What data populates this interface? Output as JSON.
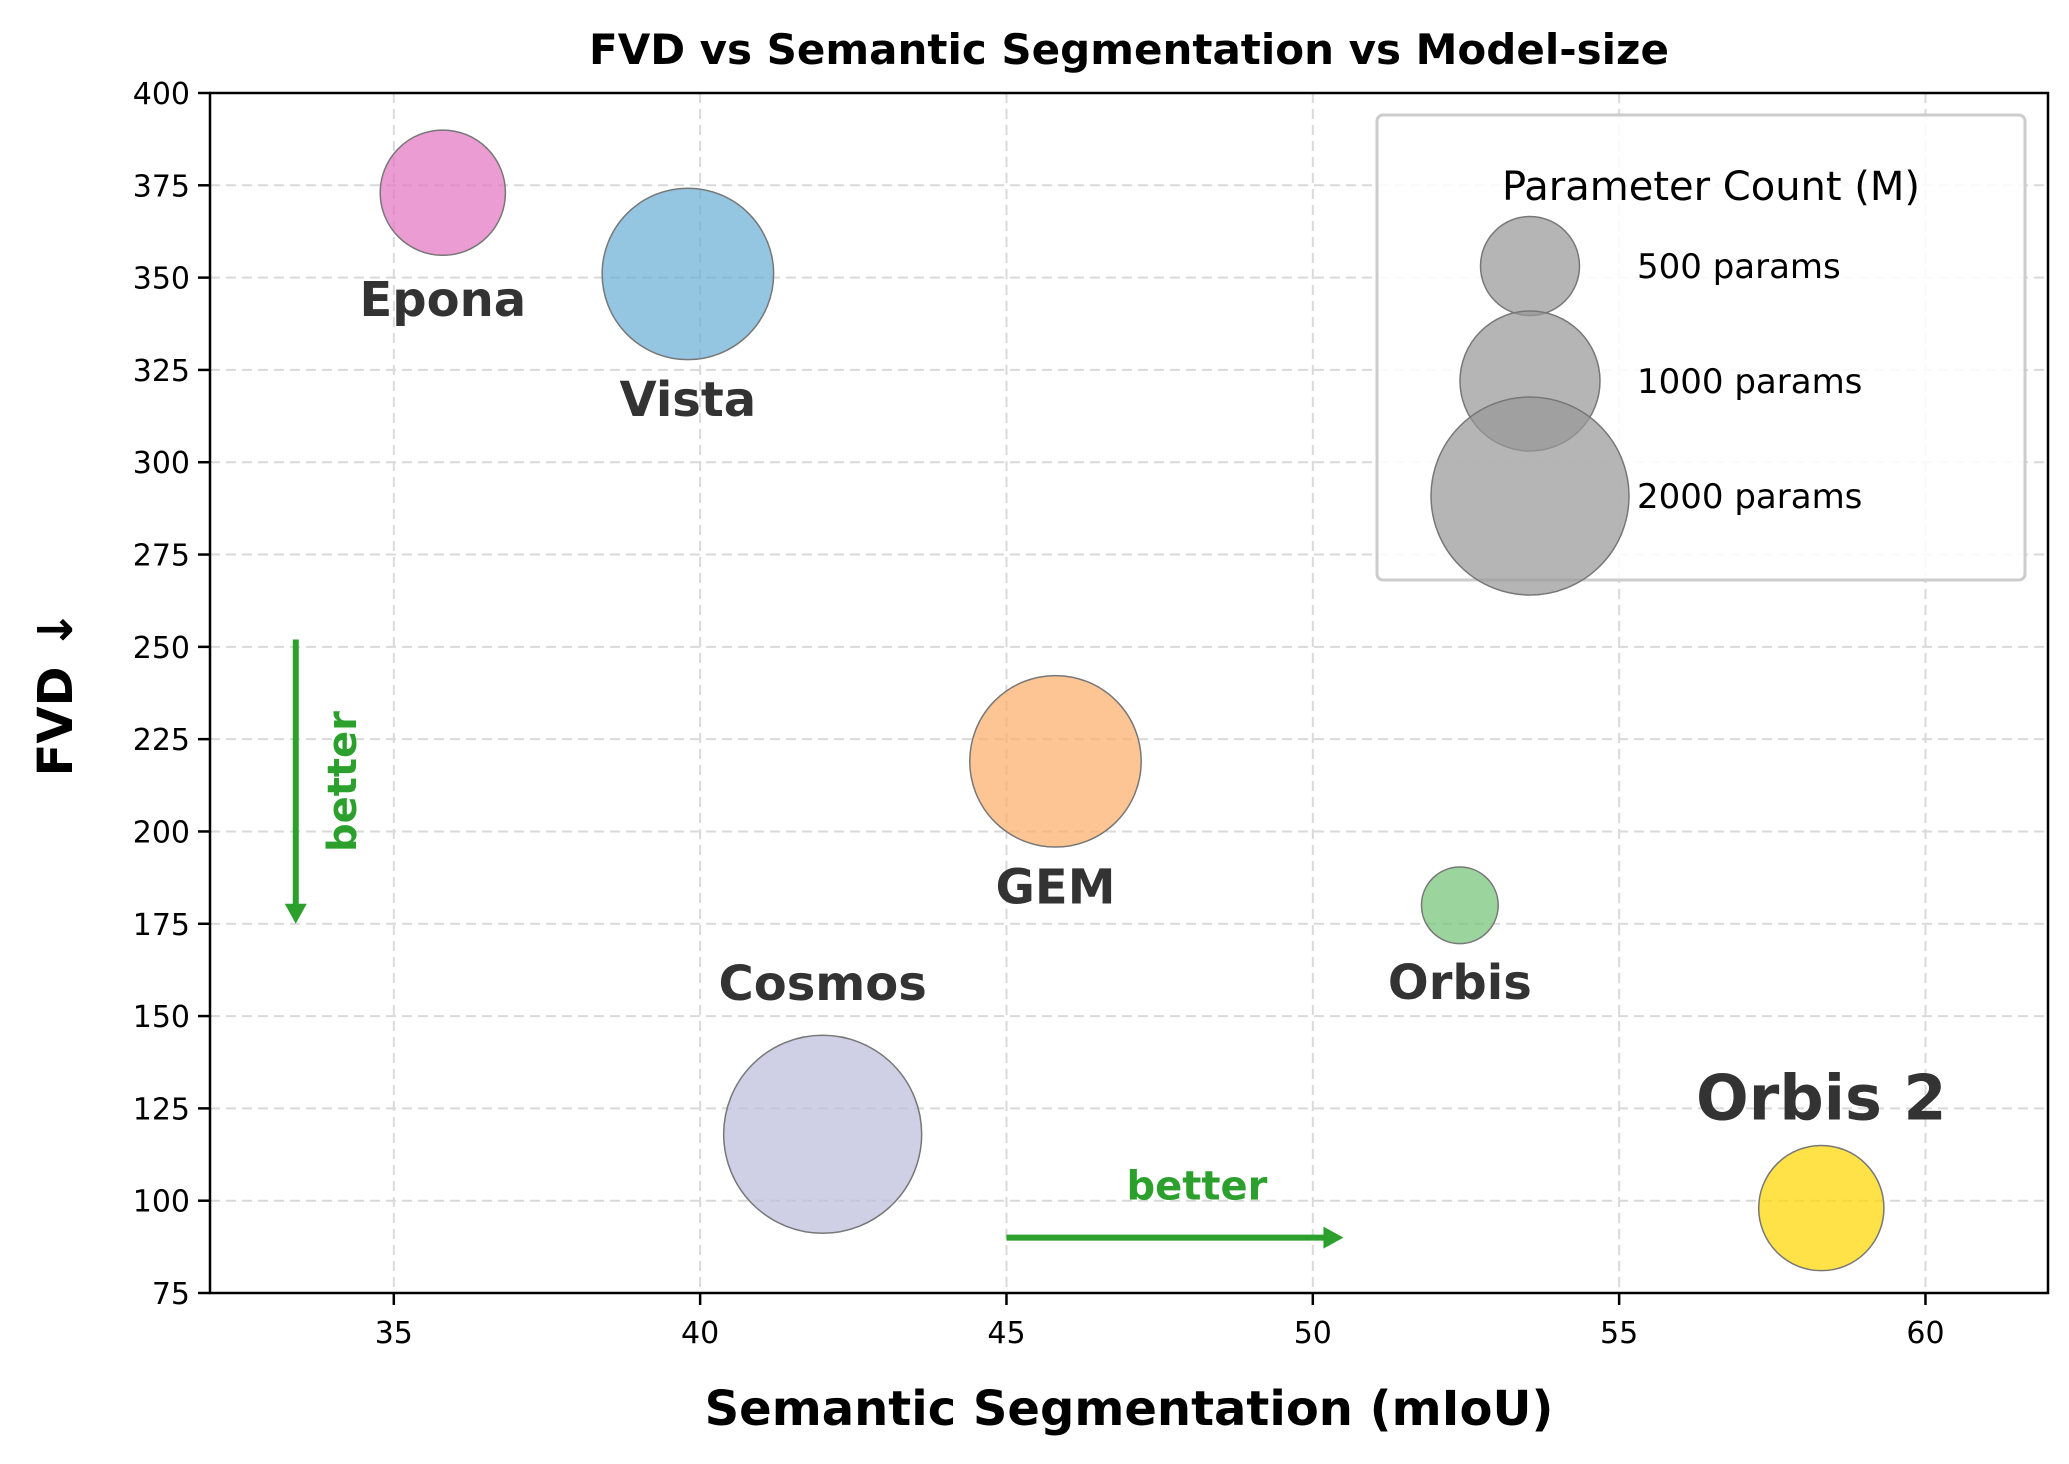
{
  "chart_data": {
    "type": "scatter",
    "title": "FVD vs Semantic Segmentation vs Model-size",
    "xlabel": "Semantic Segmentation (mIoU)",
    "ylabel": "FVD  ↓",
    "xlim": [
      32,
      62
    ],
    "ylim": [
      75,
      400
    ],
    "xticks": [
      35,
      40,
      45,
      50,
      55,
      60
    ],
    "yticks": [
      75,
      100,
      125,
      150,
      175,
      200,
      225,
      250,
      275,
      300,
      325,
      350,
      375,
      400
    ],
    "grid": true,
    "points": [
      {
        "name": "Epona",
        "x": 35.8,
        "y": 373,
        "params": 800,
        "color": "#e377c2",
        "label_dx": 0,
        "label_dy": -26,
        "label_size": 48
      },
      {
        "name": "Vista",
        "x": 39.8,
        "y": 351,
        "params": 1500,
        "color": "#6baed6",
        "label_dx": 0,
        "label_dy": -22,
        "label_size": 48
      },
      {
        "name": "GEM",
        "x": 45.8,
        "y": 219,
        "params": 1500,
        "color": "#fdae6b",
        "label_dx": 0,
        "label_dy": -22,
        "label_size": 48
      },
      {
        "name": "Orbis",
        "x": 52.4,
        "y": 180,
        "params": 300,
        "color": "#74c476",
        "label_dx": 0,
        "label_dy": -21,
        "label_size": 48
      },
      {
        "name": "Cosmos",
        "x": 42.0,
        "y": 118,
        "params": 2000,
        "color": "#bcbddc",
        "label_dx": 0,
        "label_dy": 35,
        "label_size": 48
      },
      {
        "name": "Orbis 2",
        "x": 58.3,
        "y": 98,
        "params": 800,
        "color": "#ffd700",
        "label_dx": 0,
        "label_dy": 26,
        "label_size": 62
      }
    ],
    "legend": {
      "title": "Parameter Count (M)",
      "placement": "top-right",
      "entries": [
        {
          "label": "500 params",
          "params": 500
        },
        {
          "label": "1000 params",
          "params": 1000
        },
        {
          "label": "2000 params",
          "params": 2000
        }
      ]
    },
    "annotations": {
      "vertical": {
        "text": "better",
        "color": "#2ca02c",
        "x": 33.4,
        "y_from": 252,
        "y_to": 175
      },
      "horizontal": {
        "text": "better",
        "color": "#2ca02c",
        "y": 90,
        "x_from": 45,
        "x_to": 50.5
      }
    }
  }
}
